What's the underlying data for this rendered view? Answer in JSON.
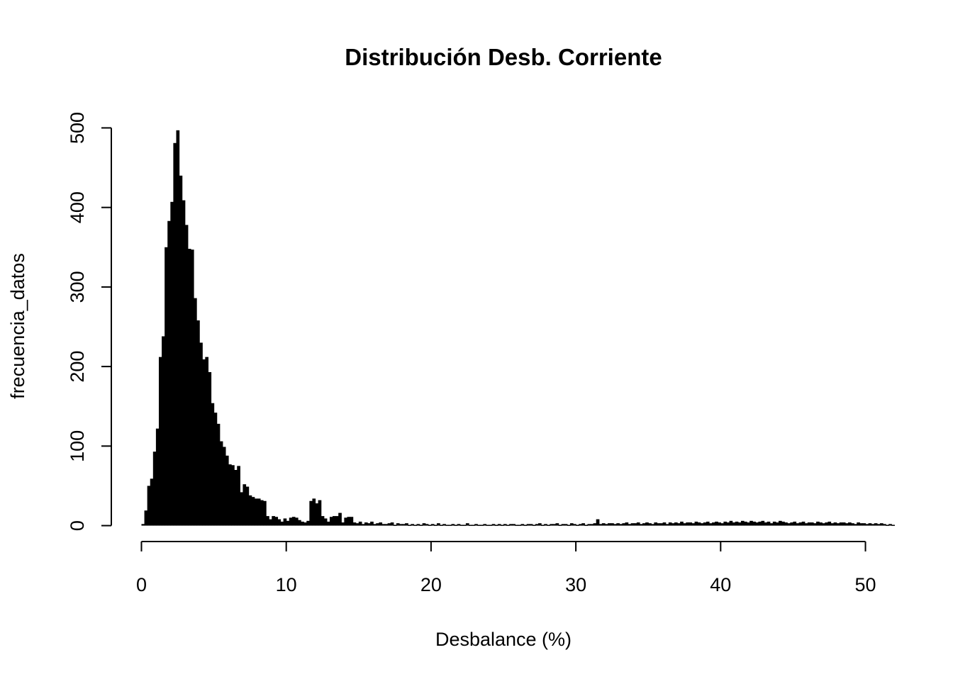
{
  "chart_data": {
    "type": "histogram",
    "title": "Distribución Desb. Corriente",
    "x_label": "Desbalance (%)",
    "y_label": "frecuencia_datos",
    "color": "#000000",
    "bins": [
      0,
      0.2,
      0.4,
      0.6,
      0.8,
      1,
      1.2,
      1.4,
      1.6,
      1.8,
      2,
      2.2,
      2.4,
      2.6,
      2.8,
      3,
      3.2,
      3.4,
      3.6,
      3.8,
      4,
      4.2,
      4.4,
      4.6,
      4.8,
      5,
      5.2,
      5.4,
      5.6,
      5.8,
      6,
      6.2,
      6.4,
      6.6,
      6.8,
      7,
      7.2,
      7.4,
      7.6,
      7.8,
      8,
      8.2,
      8.4,
      8.6,
      8.8,
      9,
      9.2,
      9.4,
      9.6,
      9.8,
      10,
      10.2,
      10.4,
      10.6,
      10.8,
      11,
      11.2,
      11.4,
      11.6,
      11.8,
      12,
      12.2,
      12.4,
      12.6,
      12.8,
      13,
      13.2,
      13.4,
      13.6,
      13.8,
      14,
      14.2,
      14.4,
      14.6,
      14.8,
      15,
      15.2,
      15.4,
      15.6,
      15.8,
      16,
      16.2,
      16.4,
      16.6,
      16.8,
      17,
      17.2,
      17.4,
      17.6,
      17.8,
      18,
      18.2,
      18.4,
      18.6,
      18.8,
      19,
      19.2,
      19.4,
      19.6,
      19.8,
      20,
      20.2,
      20.4,
      20.6,
      20.8,
      21,
      21.2,
      21.4,
      21.6,
      21.8,
      22,
      22.2,
      22.4,
      22.6,
      22.8,
      23,
      23.2,
      23.4,
      23.6,
      23.8,
      24,
      24.2,
      24.4,
      24.6,
      24.8,
      25,
      25.2,
      25.4,
      25.6,
      25.8,
      26,
      26.2,
      26.4,
      26.6,
      26.8,
      27,
      27.2,
      27.4,
      27.6,
      27.8,
      28,
      28.2,
      28.4,
      28.6,
      28.8,
      29,
      29.2,
      29.4,
      29.6,
      29.8,
      30,
      30.2,
      30.4,
      30.6,
      30.8,
      31,
      31.2,
      31.4,
      31.6,
      31.8,
      32,
      32.2,
      32.4,
      32.6,
      32.8,
      33,
      33.2,
      33.4,
      33.6,
      33.8,
      34,
      34.2,
      34.4,
      34.6,
      34.8,
      35,
      35.2,
      35.4,
      35.6,
      35.8,
      36,
      36.2,
      36.4,
      36.6,
      36.8,
      37,
      37.2,
      37.4,
      37.6,
      37.8,
      38,
      38.2,
      38.4,
      38.6,
      38.8,
      39,
      39.2,
      39.4,
      39.6,
      39.8,
      40,
      40.2,
      40.4,
      40.6,
      40.8,
      41,
      41.2,
      41.4,
      41.6,
      41.8,
      42,
      42.2,
      42.4,
      42.6,
      42.8,
      43,
      43.2,
      43.4,
      43.6,
      43.8,
      44,
      44.2,
      44.4,
      44.6,
      44.8,
      45,
      45.2,
      45.4,
      45.6,
      45.8,
      46,
      46.2,
      46.4,
      46.6,
      46.8,
      47,
      47.2,
      47.4,
      47.6,
      47.8,
      48,
      48.2,
      48.4,
      48.6,
      48.8,
      49,
      49.2,
      49.4,
      49.6,
      49.8,
      50,
      50.2,
      50.4,
      50.6,
      50.8,
      51,
      51.2,
      51.4,
      51.6,
      51.8,
      52
    ],
    "values": [
      2,
      19,
      50,
      59,
      93,
      122,
      212,
      238,
      350,
      383,
      407,
      481,
      497,
      440,
      409,
      378,
      348,
      347,
      286,
      258,
      230,
      209,
      212,
      193,
      154,
      142,
      128,
      106,
      99,
      88,
      77,
      76,
      70,
      75,
      42,
      52,
      49,
      38,
      36,
      34,
      34,
      32,
      31,
      12,
      8,
      12,
      11,
      8,
      5,
      9,
      6,
      10,
      11,
      10,
      7,
      5,
      4,
      6,
      31,
      34,
      28,
      32,
      12,
      9,
      5,
      11,
      12,
      12,
      16,
      4,
      10,
      11,
      11,
      4,
      3,
      5,
      2,
      4,
      3,
      5,
      2,
      3,
      4,
      2,
      2,
      3,
      4,
      1,
      3,
      2,
      2,
      3,
      1,
      2,
      1,
      2,
      1,
      3,
      2,
      1,
      2,
      1,
      3,
      1,
      2,
      1,
      1,
      2,
      1,
      2,
      1,
      1,
      3,
      1,
      1,
      2,
      1,
      1,
      2,
      1,
      1,
      2,
      1,
      2,
      1,
      2,
      1,
      2,
      2,
      1,
      1,
      2,
      1,
      2,
      2,
      1,
      2,
      3,
      1,
      2,
      1,
      2,
      2,
      3,
      1,
      2,
      2,
      1,
      3,
      2,
      1,
      2,
      3,
      1,
      2,
      2,
      3,
      8,
      2,
      3,
      2,
      3,
      3,
      2,
      3,
      2,
      3,
      4,
      2,
      3,
      3,
      4,
      2,
      3,
      4,
      3,
      2,
      4,
      3,
      3,
      4,
      2,
      4,
      3,
      4,
      3,
      5,
      3,
      4,
      4,
      3,
      5,
      4,
      3,
      4,
      5,
      3,
      4,
      5,
      4,
      3,
      5,
      4,
      6,
      4,
      5,
      4,
      6,
      5,
      4,
      6,
      5,
      4,
      5,
      6,
      4,
      5,
      3,
      5,
      4,
      6,
      5,
      4,
      3,
      4,
      5,
      3,
      4,
      5,
      3,
      4,
      4,
      3,
      5,
      4,
      3,
      4,
      5,
      3,
      4,
      3,
      4,
      4,
      3,
      4,
      3,
      2,
      4,
      3,
      3,
      2,
      3,
      2,
      3,
      2,
      3,
      2,
      1,
      2,
      1
    ],
    "xlim": [
      -2.08,
      52.08
    ],
    "ylim": [
      -20,
      520
    ],
    "xticks": [
      0,
      10,
      20,
      30,
      40,
      50
    ],
    "yticks": [
      0,
      100,
      200,
      300,
      400,
      500
    ]
  }
}
